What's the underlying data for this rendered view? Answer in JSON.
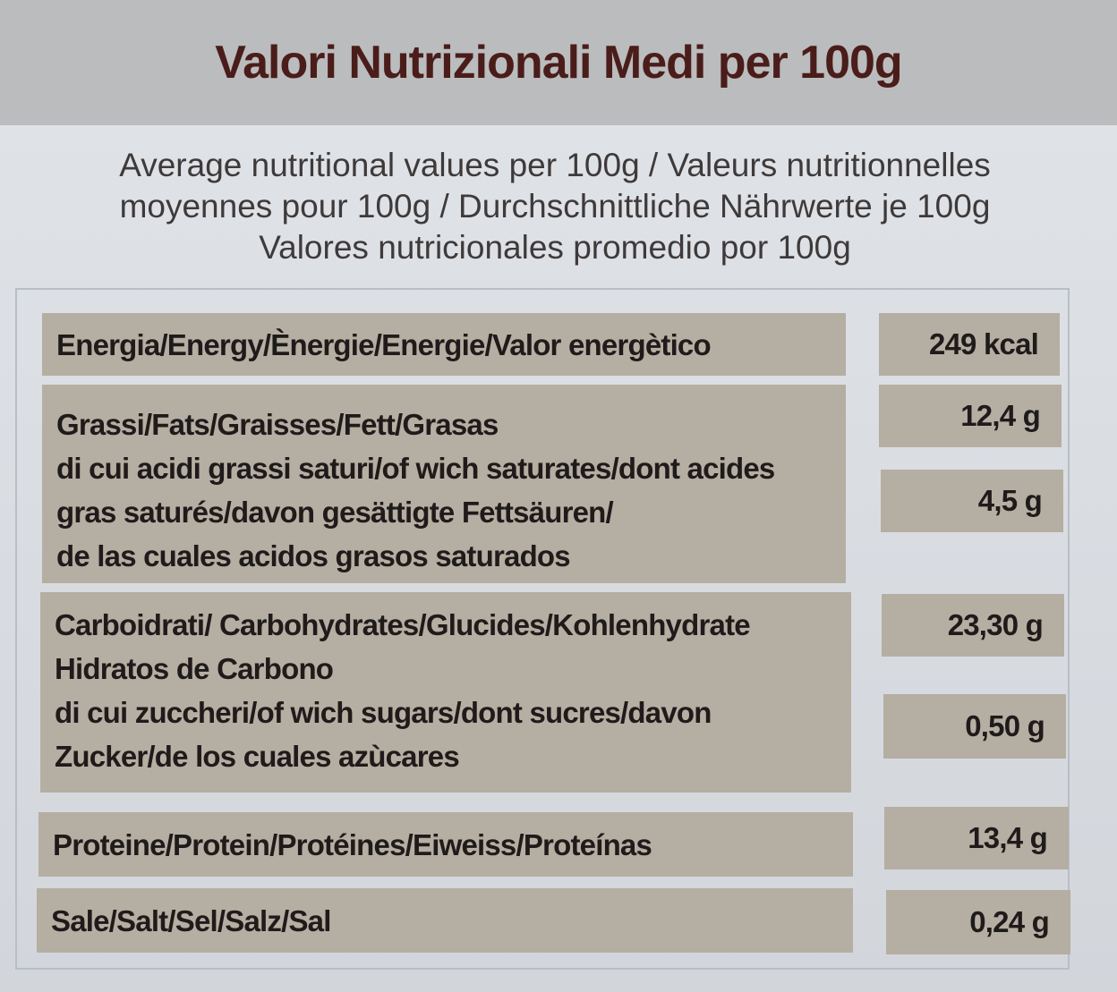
{
  "title": "Valori Nutrizionali Medi per 100g",
  "subtitle": [
    "Average nutritional values per 100g / Valeurs nutritionnelles",
    "moyennes pour 100g / Durchschnittliche Nährwerte je 100g",
    "Valores nutricionales promedio por 100g"
  ],
  "rows": {
    "energy": {
      "label": [
        "Energia/Energy/Ènergie/Energie/Valor energètico"
      ],
      "value": "249 kcal"
    },
    "fats": {
      "label": [
        "Grassi/Fats/Graisses/Fett/Grasas",
        "di cui acidi grassi saturi/of wich saturates/dont acides",
        "gras saturés/davon gesättigte Fettsäuren/",
        "de las cuales acidos grasos saturados"
      ],
      "value": "12,4 g",
      "sub_value": "4,5 g"
    },
    "carbs": {
      "label": [
        "Carboidrati/ Carbohydrates/Glucides/Kohlenhydrate",
        "Hidratos de Carbono",
        "di cui zuccheri/of wich sugars/dont sucres/davon",
        "Zucker/de los cuales azùcares"
      ],
      "value": "23,30 g",
      "sub_value": "0,50 g"
    },
    "protein": {
      "label": [
        "Proteine/Protein/Protéines/Eiweiss/Proteínas"
      ],
      "value": "13,4 g"
    },
    "salt": {
      "label": [
        "Sale/Salt/Sel/Salz/Sal"
      ],
      "value": "0,24 g"
    }
  },
  "colors": {
    "title_band": "#bbbcbe",
    "title_text": "#4a1d1a",
    "cell_fill": "#b5aea2",
    "background": "#dcdfe3"
  }
}
